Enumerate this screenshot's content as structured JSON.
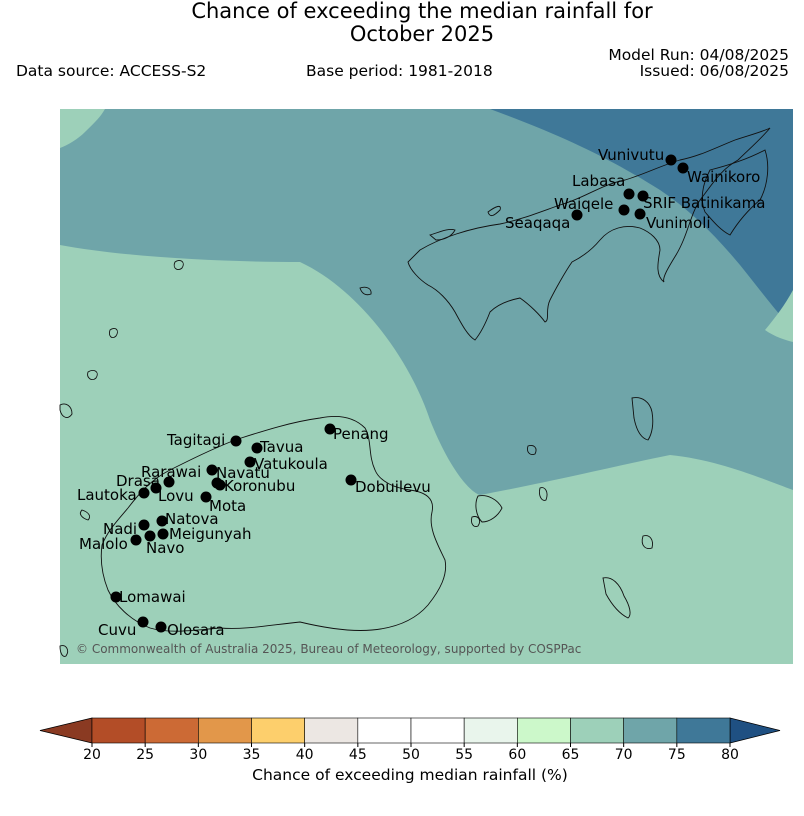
{
  "header": {
    "title_line1": "Chance of exceeding the median rainfall for",
    "title_line2": "October 2025",
    "data_source": "Data source: ACCESS-S2",
    "base_period": "Base period: 1981-2018",
    "model_run": "Model Run: 04/08/2025",
    "issued": "Issued: 06/08/2025"
  },
  "map": {
    "credit": "© Commonwealth of Australia 2025, Bureau of Meteorology, supported by COSPPac",
    "zone_colors": {
      "c65_70": "#9dd0b9",
      "c70_75": "#6fa5a9",
      "c75_80": "#3f7898"
    },
    "stations": [
      {
        "name": "Vunivutu"
      },
      {
        "name": "Wainikoro"
      },
      {
        "name": "Labasa"
      },
      {
        "name": "SRIF Batinikama"
      },
      {
        "name": "Waiqele"
      },
      {
        "name": "Vunimoli"
      },
      {
        "name": "Seaqaqa"
      },
      {
        "name": "Penang"
      },
      {
        "name": "Tagitagi"
      },
      {
        "name": "Tavua"
      },
      {
        "name": "Vatukoula"
      },
      {
        "name": "Rarawai"
      },
      {
        "name": "Navatu"
      },
      {
        "name": "Koronubu"
      },
      {
        "name": "Drasa"
      },
      {
        "name": "Lautoka"
      },
      {
        "name": "Lovu"
      },
      {
        "name": "Mota"
      },
      {
        "name": "Dobuilevu"
      },
      {
        "name": "Natova"
      },
      {
        "name": "Nadi"
      },
      {
        "name": "Meigunyah"
      },
      {
        "name": "Malolo"
      },
      {
        "name": "Navo"
      },
      {
        "name": "Lomawai"
      },
      {
        "name": "Cuvu"
      },
      {
        "name": "Olosara"
      }
    ]
  },
  "colorbar": {
    "label": "Chance of exceeding median rainfall (%)",
    "ticks": [
      "20",
      "25",
      "30",
      "35",
      "40",
      "45",
      "50",
      "55",
      "60",
      "65",
      "70",
      "75",
      "80"
    ],
    "colors": [
      "#b34d27",
      "#cc6a35",
      "#e2974a",
      "#fdcf6c",
      "#ece7e3",
      "#ffffff",
      "#ffffff",
      "#e9f5ec",
      "#ccf8ca",
      "#9dd0b9",
      "#6fa5a9",
      "#3f7898"
    ],
    "under_color": "#8a3a22",
    "over_color": "#1f5082"
  }
}
